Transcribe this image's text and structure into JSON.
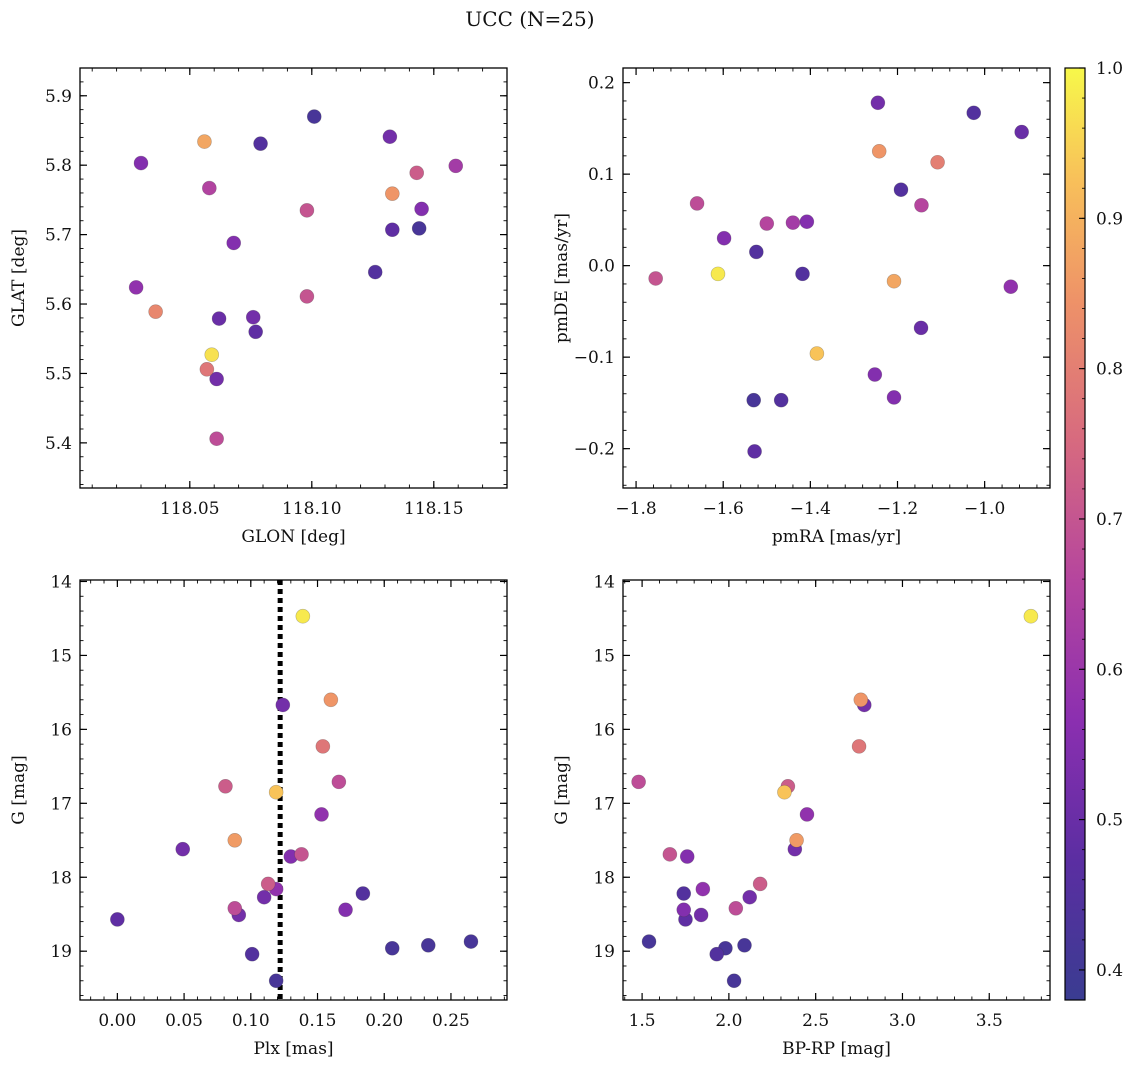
{
  "suptitle": "UCC (N=25)",
  "colorbar": {
    "ticks": [
      0.4,
      0.5,
      0.6,
      0.7,
      0.8,
      0.9,
      1.0
    ],
    "tick_labels": [
      "0.4",
      "0.5",
      "0.6",
      "0.7",
      "0.8",
      "0.9",
      "1.0"
    ],
    "range": [
      0.38,
      1.0
    ],
    "colormap": "plasma"
  },
  "chart_data": [
    {
      "type": "scatter",
      "name": "glon-glat",
      "xlabel": "GLON [deg]",
      "ylabel": "GLAT [deg]",
      "xlim": [
        118.005,
        118.18
      ],
      "ylim": [
        5.335,
        5.94
      ],
      "xticks": [
        118.05,
        118.1,
        118.15
      ],
      "xtick_labels": [
        "118.05",
        "118.10",
        "118.15"
      ],
      "yticks": [
        5.4,
        5.5,
        5.6,
        5.7,
        5.8,
        5.9
      ],
      "ytick_labels": [
        "5.4",
        "5.5",
        "5.6",
        "5.7",
        "5.8",
        "5.9"
      ],
      "points": [
        {
          "x": 118.03,
          "y": 5.803,
          "c": 0.55
        },
        {
          "x": 118.056,
          "y": 5.834,
          "c": 0.88
        },
        {
          "x": 118.079,
          "y": 5.831,
          "c": 0.45
        },
        {
          "x": 118.101,
          "y": 5.87,
          "c": 0.42
        },
        {
          "x": 118.132,
          "y": 5.841,
          "c": 0.52
        },
        {
          "x": 118.058,
          "y": 5.767,
          "c": 0.65
        },
        {
          "x": 118.143,
          "y": 5.789,
          "c": 0.72
        },
        {
          "x": 118.159,
          "y": 5.799,
          "c": 0.62
        },
        {
          "x": 118.133,
          "y": 5.759,
          "c": 0.85
        },
        {
          "x": 118.098,
          "y": 5.735,
          "c": 0.7
        },
        {
          "x": 118.145,
          "y": 5.737,
          "c": 0.55
        },
        {
          "x": 118.068,
          "y": 5.688,
          "c": 0.55
        },
        {
          "x": 118.133,
          "y": 5.707,
          "c": 0.48
        },
        {
          "x": 118.144,
          "y": 5.709,
          "c": 0.42
        },
        {
          "x": 118.126,
          "y": 5.646,
          "c": 0.45
        },
        {
          "x": 118.028,
          "y": 5.624,
          "c": 0.58
        },
        {
          "x": 118.036,
          "y": 5.589,
          "c": 0.82
        },
        {
          "x": 118.098,
          "y": 5.611,
          "c": 0.7
        },
        {
          "x": 118.062,
          "y": 5.579,
          "c": 0.5
        },
        {
          "x": 118.076,
          "y": 5.581,
          "c": 0.52
        },
        {
          "x": 118.077,
          "y": 5.56,
          "c": 0.48
        },
        {
          "x": 118.059,
          "y": 5.527,
          "c": 0.97
        },
        {
          "x": 118.057,
          "y": 5.506,
          "c": 0.78
        },
        {
          "x": 118.061,
          "y": 5.492,
          "c": 0.52
        },
        {
          "x": 118.061,
          "y": 5.406,
          "c": 0.68
        }
      ]
    },
    {
      "type": "scatter",
      "name": "pmra-pmde",
      "xlabel": "pmRA [mas/yr]",
      "ylabel": "pmDE [mas/yr]",
      "xlim": [
        -1.83,
        -0.85
      ],
      "ylim": [
        -0.243,
        0.216
      ],
      "xticks": [
        -1.8,
        -1.6,
        -1.4,
        -1.2,
        -1.0
      ],
      "xtick_labels": [
        "−1.8",
        "−1.6",
        "−1.4",
        "−1.2",
        "−1.0"
      ],
      "yticks": [
        -0.2,
        -0.1,
        0.0,
        0.1,
        0.2
      ],
      "ytick_labels": [
        "−0.2",
        "−0.1",
        "0.0",
        "0.1",
        "0.2"
      ],
      "points": [
        {
          "x": -1.245,
          "y": 0.178,
          "c": 0.52
        },
        {
          "x": -1.025,
          "y": 0.167,
          "c": 0.45
        },
        {
          "x": -0.915,
          "y": 0.146,
          "c": 0.5
        },
        {
          "x": -1.242,
          "y": 0.125,
          "c": 0.85
        },
        {
          "x": -1.108,
          "y": 0.113,
          "c": 0.8
        },
        {
          "x": -1.192,
          "y": 0.083,
          "c": 0.45
        },
        {
          "x": -1.66,
          "y": 0.068,
          "c": 0.68
        },
        {
          "x": -1.145,
          "y": 0.066,
          "c": 0.66
        },
        {
          "x": -1.5,
          "y": 0.046,
          "c": 0.66
        },
        {
          "x": -1.44,
          "y": 0.047,
          "c": 0.62
        },
        {
          "x": -1.408,
          "y": 0.048,
          "c": 0.55
        },
        {
          "x": -1.598,
          "y": 0.03,
          "c": 0.55
        },
        {
          "x": -1.524,
          "y": 0.015,
          "c": 0.45
        },
        {
          "x": -1.612,
          "y": -0.009,
          "c": 0.98
        },
        {
          "x": -1.418,
          "y": -0.009,
          "c": 0.45
        },
        {
          "x": -1.755,
          "y": -0.014,
          "c": 0.7
        },
        {
          "x": -1.208,
          "y": -0.017,
          "c": 0.88
        },
        {
          "x": -0.94,
          "y": -0.023,
          "c": 0.58
        },
        {
          "x": -1.146,
          "y": -0.068,
          "c": 0.5
        },
        {
          "x": -1.385,
          "y": -0.096,
          "c": 0.93
        },
        {
          "x": -1.252,
          "y": -0.119,
          "c": 0.55
        },
        {
          "x": -1.208,
          "y": -0.144,
          "c": 0.55
        },
        {
          "x": -1.53,
          "y": -0.147,
          "c": 0.42
        },
        {
          "x": -1.467,
          "y": -0.147,
          "c": 0.45
        },
        {
          "x": -1.528,
          "y": -0.203,
          "c": 0.48
        }
      ]
    },
    {
      "type": "scatter",
      "name": "plx-g",
      "xlabel": "Plx [mas]",
      "ylabel": "G [mag]",
      "xlim": [
        -0.028,
        0.292
      ],
      "ylim": [
        19.66,
        13.98
      ],
      "xticks": [
        0.0,
        0.05,
        0.1,
        0.15,
        0.2,
        0.25
      ],
      "xtick_labels": [
        "0.00",
        "0.05",
        "0.10",
        "0.15",
        "0.20",
        "0.25"
      ],
      "yticks": [
        14,
        15,
        16,
        17,
        18,
        19
      ],
      "ytick_labels": [
        "14",
        "15",
        "16",
        "17",
        "18",
        "19"
      ],
      "vline_x": 0.122,
      "points": [
        {
          "x": 0.139,
          "y": 14.47,
          "c": 0.98
        },
        {
          "x": 0.16,
          "y": 15.6,
          "c": 0.85
        },
        {
          "x": 0.124,
          "y": 15.67,
          "c": 0.52
        },
        {
          "x": 0.154,
          "y": 16.23,
          "c": 0.78
        },
        {
          "x": 0.166,
          "y": 16.71,
          "c": 0.68
        },
        {
          "x": 0.081,
          "y": 16.77,
          "c": 0.72
        },
        {
          "x": 0.119,
          "y": 16.85,
          "c": 0.93
        },
        {
          "x": 0.153,
          "y": 17.15,
          "c": 0.58
        },
        {
          "x": 0.088,
          "y": 17.5,
          "c": 0.86
        },
        {
          "x": 0.049,
          "y": 17.62,
          "c": 0.52
        },
        {
          "x": 0.138,
          "y": 17.69,
          "c": 0.7
        },
        {
          "x": 0.13,
          "y": 17.72,
          "c": 0.55
        },
        {
          "x": 0.113,
          "y": 18.09,
          "c": 0.72
        },
        {
          "x": 0.119,
          "y": 18.16,
          "c": 0.58
        },
        {
          "x": 0.184,
          "y": 18.22,
          "c": 0.45
        },
        {
          "x": 0.11,
          "y": 18.27,
          "c": 0.52
        },
        {
          "x": 0.088,
          "y": 18.42,
          "c": 0.68
        },
        {
          "x": 0.171,
          "y": 18.44,
          "c": 0.55
        },
        {
          "x": 0.091,
          "y": 18.51,
          "c": 0.52
        },
        {
          "x": 0.0,
          "y": 18.57,
          "c": 0.48
        },
        {
          "x": 0.265,
          "y": 18.87,
          "c": 0.42
        },
        {
          "x": 0.233,
          "y": 18.92,
          "c": 0.42
        },
        {
          "x": 0.206,
          "y": 18.96,
          "c": 0.42
        },
        {
          "x": 0.101,
          "y": 19.04,
          "c": 0.45
        },
        {
          "x": 0.119,
          "y": 19.4,
          "c": 0.42
        }
      ]
    },
    {
      "type": "scatter",
      "name": "bprp-g",
      "xlabel": "BP-RP [mag]",
      "ylabel": "G [mag]",
      "xlim": [
        1.39,
        3.85
      ],
      "ylim": [
        19.66,
        13.98
      ],
      "xticks": [
        1.5,
        2.0,
        2.5,
        3.0,
        3.5
      ],
      "xtick_labels": [
        "1.5",
        "2.0",
        "2.5",
        "3.0",
        "3.5"
      ],
      "yticks": [
        14,
        15,
        16,
        17,
        18,
        19
      ],
      "ytick_labels": [
        "14",
        "15",
        "16",
        "17",
        "18",
        "19"
      ],
      "points": [
        {
          "x": 3.74,
          "y": 14.47,
          "c": 0.98
        },
        {
          "x": 2.76,
          "y": 15.6,
          "c": 0.85
        },
        {
          "x": 2.78,
          "y": 15.67,
          "c": 0.52
        },
        {
          "x": 2.75,
          "y": 16.23,
          "c": 0.78
        },
        {
          "x": 1.48,
          "y": 16.71,
          "c": 0.68
        },
        {
          "x": 2.34,
          "y": 16.77,
          "c": 0.72
        },
        {
          "x": 2.32,
          "y": 16.85,
          "c": 0.93
        },
        {
          "x": 2.45,
          "y": 17.15,
          "c": 0.58
        },
        {
          "x": 2.39,
          "y": 17.5,
          "c": 0.86
        },
        {
          "x": 2.38,
          "y": 17.62,
          "c": 0.52
        },
        {
          "x": 1.66,
          "y": 17.69,
          "c": 0.7
        },
        {
          "x": 1.76,
          "y": 17.72,
          "c": 0.55
        },
        {
          "x": 2.18,
          "y": 18.09,
          "c": 0.72
        },
        {
          "x": 1.85,
          "y": 18.16,
          "c": 0.58
        },
        {
          "x": 1.74,
          "y": 18.22,
          "c": 0.45
        },
        {
          "x": 2.12,
          "y": 18.27,
          "c": 0.52
        },
        {
          "x": 2.04,
          "y": 18.42,
          "c": 0.68
        },
        {
          "x": 1.74,
          "y": 18.44,
          "c": 0.55
        },
        {
          "x": 1.84,
          "y": 18.51,
          "c": 0.52
        },
        {
          "x": 1.75,
          "y": 18.57,
          "c": 0.48
        },
        {
          "x": 1.54,
          "y": 18.87,
          "c": 0.42
        },
        {
          "x": 2.09,
          "y": 18.92,
          "c": 0.42
        },
        {
          "x": 1.98,
          "y": 18.96,
          "c": 0.42
        },
        {
          "x": 1.93,
          "y": 19.04,
          "c": 0.45
        },
        {
          "x": 2.03,
          "y": 19.4,
          "c": 0.42
        }
      ]
    }
  ]
}
